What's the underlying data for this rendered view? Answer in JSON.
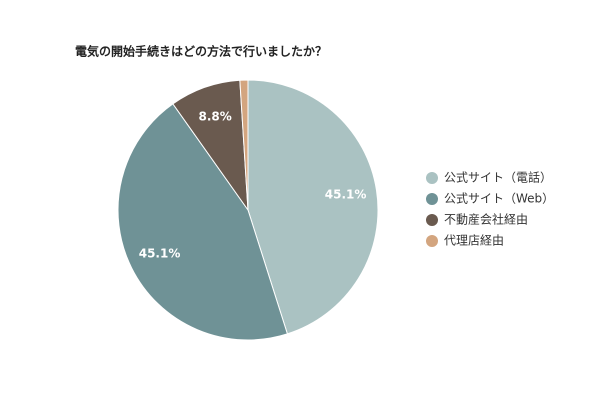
{
  "chart_data": {
    "type": "pie",
    "title": "電気の開始手続きはどの方法で行いましたか？",
    "categories": [
      "公式サイト（電話）",
      "公式サイト（Web）",
      "不動産会社経由",
      "代理店経由"
    ],
    "values": [
      45.1,
      45.1,
      8.8,
      1.0
    ],
    "value_labels": [
      "45.1%",
      "45.1%",
      "8.8%",
      null
    ],
    "colors": [
      "#aac2c2",
      "#6f9296",
      "#6a5a4f",
      "#d3a57f"
    ],
    "legend": "right"
  }
}
